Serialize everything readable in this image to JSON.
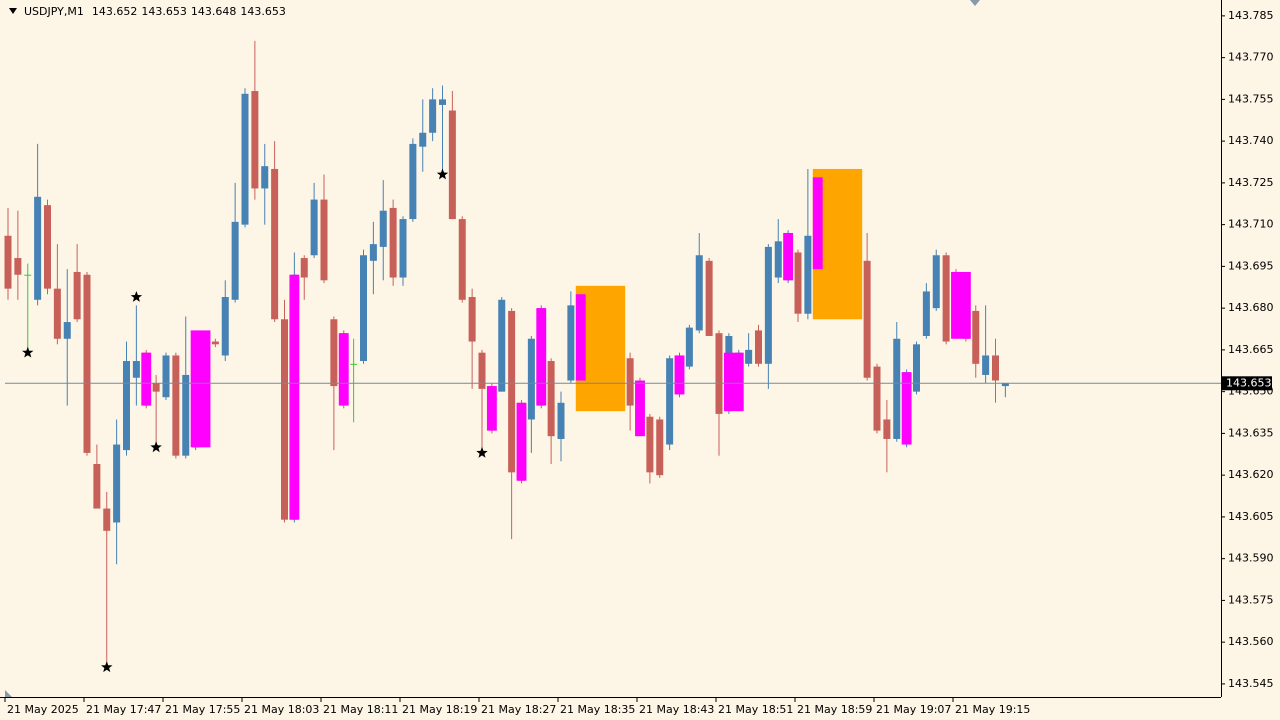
{
  "chart_data": {
    "type": "candlestick",
    "title": "USDJPY,M1",
    "header_ohlc": [
      143.652,
      143.653,
      143.648,
      143.653
    ],
    "categories": [
      "21 May 2025",
      null,
      null,
      null,
      null,
      null,
      null,
      null,
      "21 May 17:47",
      null,
      null,
      null,
      null,
      null,
      null,
      null,
      "21 May 17:55",
      null,
      null,
      null,
      null,
      null,
      null,
      null,
      "21 May 18:03",
      null,
      null,
      null,
      null,
      null,
      null,
      null,
      "21 May 18:11",
      null,
      null,
      null,
      null,
      null,
      null,
      null,
      "21 May 18:19",
      null,
      null,
      null,
      null,
      null,
      null,
      null,
      "21 May 18:27",
      null,
      null,
      null,
      null,
      null,
      null,
      null,
      "21 May 18:35",
      null,
      null,
      null,
      null,
      null,
      null,
      null,
      "21 May 18:43",
      null,
      null,
      null,
      null,
      null,
      null,
      null,
      "21 May 18:51",
      null,
      null,
      null,
      null,
      null,
      null,
      null,
      "21 May 18:59",
      null,
      null,
      null,
      null,
      null,
      null,
      null,
      "21 May 19:07",
      null,
      null,
      null,
      null,
      null,
      null,
      null,
      "21 May 19:15",
      null,
      null,
      null,
      null,
      null
    ],
    "open": [
      143.706,
      143.698,
      143.692,
      143.683,
      143.717,
      143.687,
      143.669,
      143.693,
      143.692,
      143.624,
      143.608,
      143.603,
      143.629,
      143.655,
      143.664,
      143.653,
      143.648,
      143.663,
      143.627,
      143.63,
      143.668,
      143.668,
      143.663,
      143.683,
      143.71,
      143.758,
      143.723,
      143.73,
      143.676,
      143.604,
      143.698,
      143.699,
      143.719,
      143.676,
      143.671,
      143.66,
      143.661,
      143.697,
      143.702,
      143.716,
      143.691,
      143.712,
      143.738,
      143.743,
      143.753,
      143.751,
      143.712,
      143.684,
      143.664,
      143.652,
      143.65,
      143.679,
      143.646,
      143.64,
      143.645,
      143.661,
      143.633,
      143.654,
      143.654,
      143.685,
      143.672,
      143.662,
      143.65,
      143.662,
      143.654,
      143.641,
      143.64,
      143.631,
      143.649,
      143.659,
      143.672,
      143.697,
      143.671,
      143.643,
      143.644,
      143.66,
      143.672,
      143.66,
      143.691,
      143.69,
      143.7,
      143.678,
      143.695,
      143.727,
      143.718,
      143.705,
      143.69,
      143.697,
      143.659,
      143.64,
      143.633,
      143.631,
      143.65,
      143.67,
      143.68,
      143.699,
      143.693,
      143.69,
      143.679,
      143.656,
      143.663,
      143.652
    ],
    "high": [
      143.716,
      143.715,
      143.696,
      143.739,
      143.719,
      143.703,
      143.694,
      143.703,
      143.693,
      143.631,
      143.614,
      143.64,
      143.668,
      143.681,
      143.665,
      143.656,
      143.664,
      143.664,
      143.677,
      143.672,
      143.669,
      143.669,
      143.69,
      143.725,
      143.759,
      143.776,
      143.739,
      143.74,
      143.683,
      143.7,
      143.699,
      143.725,
      143.728,
      143.677,
      143.672,
      143.669,
      143.701,
      143.711,
      143.726,
      143.719,
      143.713,
      143.741,
      143.755,
      143.759,
      143.76,
      143.758,
      143.713,
      143.687,
      143.665,
      143.653,
      143.684,
      143.68,
      143.647,
      143.67,
      143.681,
      143.662,
      143.65,
      143.686,
      143.686,
      143.687,
      143.675,
      143.666,
      143.662,
      143.664,
      143.655,
      143.642,
      143.641,
      143.663,
      143.664,
      143.674,
      143.707,
      143.698,
      143.672,
      143.671,
      143.665,
      143.671,
      143.674,
      143.703,
      143.712,
      143.708,
      143.701,
      143.73,
      143.728,
      143.729,
      143.722,
      143.709,
      143.702,
      143.707,
      143.66,
      143.647,
      143.675,
      143.658,
      143.668,
      143.689,
      143.701,
      143.7,
      143.694,
      143.691,
      143.681,
      143.681,
      143.669,
      143.653
    ],
    "low": [
      143.683,
      143.683,
      143.665,
      143.681,
      143.685,
      143.667,
      143.645,
      143.675,
      143.627,
      143.608,
      143.551,
      143.588,
      143.627,
      143.645,
      143.644,
      143.629,
      143.647,
      143.626,
      143.626,
      143.629,
      143.634,
      143.666,
      143.661,
      143.682,
      143.709,
      143.719,
      143.71,
      143.675,
      143.603,
      143.603,
      143.683,
      143.698,
      143.689,
      143.629,
      143.644,
      143.639,
      143.66,
      143.685,
      143.69,
      143.688,
      143.688,
      143.711,
      143.729,
      143.74,
      143.728,
      143.712,
      143.682,
      143.651,
      143.629,
      143.635,
      143.65,
      143.597,
      143.617,
      143.628,
      143.644,
      143.624,
      143.625,
      143.653,
      143.653,
      143.668,
      143.658,
      143.645,
      143.644,
      143.636,
      143.634,
      143.617,
      143.619,
      143.629,
      143.648,
      143.658,
      143.671,
      143.67,
      143.627,
      143.642,
      143.643,
      143.659,
      143.659,
      143.651,
      143.689,
      143.689,
      143.675,
      143.676,
      143.694,
      143.712,
      143.7,
      143.683,
      143.678,
      143.654,
      143.635,
      143.621,
      143.632,
      143.63,
      143.649,
      143.669,
      143.679,
      143.667,
      143.669,
      143.668,
      143.655,
      143.653,
      143.646,
      143.648
    ],
    "close": [
      143.687,
      143.692,
      143.692,
      143.72,
      143.687,
      143.669,
      143.675,
      143.676,
      143.628,
      143.608,
      143.6,
      143.631,
      143.661,
      143.661,
      143.645,
      143.65,
      143.663,
      143.627,
      143.656,
      143.671,
      143.635,
      143.667,
      143.684,
      143.711,
      143.757,
      143.723,
      143.731,
      143.676,
      143.604,
      143.692,
      143.691,
      143.719,
      143.69,
      143.652,
      143.645,
      143.66,
      143.699,
      143.703,
      143.715,
      143.691,
      143.712,
      143.739,
      143.743,
      143.755,
      143.755,
      143.712,
      143.683,
      143.668,
      143.651,
      143.636,
      143.683,
      143.621,
      143.618,
      143.669,
      143.68,
      143.634,
      143.646,
      143.681,
      143.685,
      143.672,
      143.662,
      143.65,
      143.66,
      143.645,
      143.635,
      143.621,
      143.62,
      143.662,
      143.663,
      143.673,
      143.699,
      143.67,
      143.642,
      143.67,
      143.664,
      143.665,
      143.66,
      143.702,
      143.704,
      143.707,
      143.678,
      143.706,
      143.727,
      143.718,
      143.705,
      143.69,
      143.697,
      143.655,
      143.636,
      143.633,
      143.669,
      143.657,
      143.667,
      143.686,
      143.699,
      143.668,
      143.67,
      143.669,
      143.66,
      143.663,
      143.654,
      143.653
    ],
    "up_color": "#4682b4",
    "down_color": "#c8605a",
    "doji_color": "#32cd32",
    "highlights": {
      "color": "#ff00ff",
      "zones": [
        {
          "start": 14,
          "end": 14,
          "high": 143.664,
          "low": 143.645
        },
        {
          "start": 19,
          "end": 20,
          "high": 143.672,
          "low": 143.63
        },
        {
          "start": 29,
          "end": 29,
          "high": 143.692,
          "low": 143.604
        },
        {
          "start": 34,
          "end": 34,
          "high": 143.671,
          "low": 143.645
        },
        {
          "start": 49,
          "end": 49,
          "high": 143.652,
          "low": 143.636
        },
        {
          "start": 52,
          "end": 52,
          "high": 143.646,
          "low": 143.618
        },
        {
          "start": 54,
          "end": 54,
          "high": 143.68,
          "low": 143.645
        },
        {
          "start": 58,
          "end": 58,
          "high": 143.685,
          "low": 143.654
        },
        {
          "start": 64,
          "end": 64,
          "high": 143.654,
          "low": 143.634
        },
        {
          "start": 68,
          "end": 68,
          "high": 143.663,
          "low": 143.649
        },
        {
          "start": 73,
          "end": 74,
          "high": 143.664,
          "low": 143.643
        },
        {
          "start": 79,
          "end": 79,
          "high": 143.707,
          "low": 143.69
        },
        {
          "start": 82,
          "end": 82,
          "high": 143.727,
          "low": 143.694
        },
        {
          "start": 91,
          "end": 91,
          "high": 143.657,
          "low": 143.631
        },
        {
          "start": 96,
          "end": 97,
          "high": 143.693,
          "low": 143.669
        }
      ]
    },
    "boxes": {
      "color": "#ffa500",
      "zones": [
        {
          "start": 58,
          "end": 62,
          "high": 143.688,
          "low": 143.643
        },
        {
          "start": 82,
          "end": 86,
          "high": 143.73,
          "low": 143.676
        }
      ]
    },
    "stars": [
      {
        "index": 2,
        "value": 143.664
      },
      {
        "index": 10,
        "value": 143.551
      },
      {
        "index": 13,
        "value": 143.684
      },
      {
        "index": 15,
        "value": 143.63
      },
      {
        "index": 44,
        "value": 143.728
      },
      {
        "index": 48,
        "value": 143.628
      }
    ],
    "price_line": {
      "value": 143.653,
      "color": "#778899"
    },
    "ylim": [
      143.5403,
      143.7907
    ],
    "yticks": [
      143.785,
      {
        "value": 143.77,
        "label": "143.770"
      },
      143.755,
      {
        "value": 143.74,
        "label": "143.740"
      },
      143.725,
      {
        "value": 143.71,
        "label": "143.710"
      },
      143.695,
      {
        "value": 143.68,
        "label": "143.680"
      },
      143.665,
      {
        "value": 143.65,
        "label": "143.650"
      },
      143.635,
      {
        "value": 143.62,
        "label": "143.620"
      },
      143.605,
      {
        "value": 143.59,
        "label": "143.590"
      },
      143.575,
      {
        "value": 143.56,
        "label": "143.560"
      },
      143.545
    ],
    "grid": false
  }
}
